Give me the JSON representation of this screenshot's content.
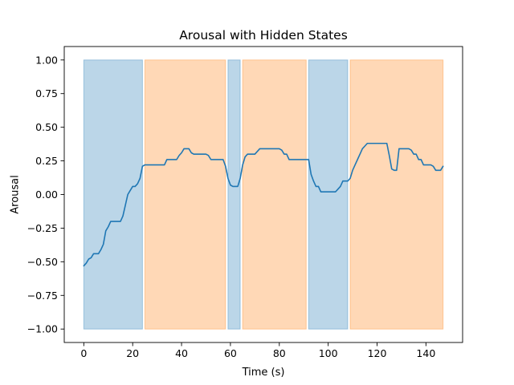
{
  "chart_data": {
    "type": "line",
    "title": "Arousal with Hidden States",
    "xlabel": "Time (s)",
    "ylabel": "Arousal",
    "xlim": [
      -8,
      155
    ],
    "ylim": [
      -1.1,
      1.1
    ],
    "xticks": [
      0,
      20,
      40,
      60,
      80,
      100,
      120,
      140
    ],
    "xtick_labels": [
      "0",
      "20",
      "40",
      "60",
      "80",
      "100",
      "120",
      "140"
    ],
    "yticks": [
      -1.0,
      -0.75,
      -0.5,
      -0.25,
      0.0,
      0.25,
      0.5,
      0.75,
      1.0
    ],
    "ytick_labels": [
      "−1.00",
      "−0.75",
      "−0.50",
      "−0.25",
      "0.00",
      "0.25",
      "0.50",
      "0.75",
      "1.00"
    ],
    "grid": false,
    "legend": "none",
    "state_colors": [
      "#1f77b4",
      "#ff7f0e"
    ],
    "state_opacity": 0.3,
    "line_color": "#1f77b4",
    "state_spans": [
      {
        "state": 0,
        "start": 0,
        "end": 24,
        "ymin": -1.0,
        "ymax": 1.0
      },
      {
        "state": 1,
        "start": 25,
        "end": 58,
        "ymin": -1.0,
        "ymax": 1.0
      },
      {
        "state": 0,
        "start": 59,
        "end": 64,
        "ymin": -1.0,
        "ymax": 1.0
      },
      {
        "state": 1,
        "start": 65,
        "end": 91,
        "ymin": -1.0,
        "ymax": 1.0
      },
      {
        "state": 0,
        "start": 92,
        "end": 108,
        "ymin": -1.0,
        "ymax": 1.0
      },
      {
        "state": 1,
        "start": 109,
        "end": 147,
        "ymin": -1.0,
        "ymax": 1.0
      }
    ],
    "series": [
      {
        "x": [
          0,
          1,
          2,
          3,
          4,
          5,
          6,
          7,
          8,
          9,
          10,
          11,
          12,
          13,
          14,
          15,
          16,
          17,
          18,
          19,
          20,
          21,
          22,
          23,
          24,
          25,
          26,
          27,
          28,
          29,
          30,
          31,
          32,
          33,
          34,
          35,
          36,
          37,
          38,
          39,
          40,
          41,
          42,
          43,
          44,
          45,
          46,
          47,
          48,
          49,
          50,
          51,
          52,
          53,
          54,
          55,
          56,
          57,
          58,
          59,
          60,
          61,
          62,
          63,
          64,
          65,
          66,
          67,
          68,
          69,
          70,
          71,
          72,
          73,
          74,
          75,
          76,
          77,
          78,
          79,
          80,
          81,
          82,
          83,
          84,
          85,
          86,
          87,
          88,
          89,
          90,
          91,
          92,
          93,
          94,
          95,
          96,
          97,
          98,
          99,
          100,
          101,
          102,
          103,
          104,
          105,
          106,
          107,
          108,
          109,
          110,
          111,
          112,
          113,
          114,
          115,
          116,
          117,
          118,
          119,
          120,
          121,
          122,
          123,
          124,
          125,
          126,
          127,
          128,
          129,
          130,
          131,
          132,
          133,
          134,
          135,
          136,
          137,
          138,
          139,
          140,
          141,
          142,
          143,
          144,
          145,
          146,
          147
        ],
        "y": [
          -0.53,
          -0.51,
          -0.48,
          -0.47,
          -0.44,
          -0.44,
          -0.44,
          -0.41,
          -0.37,
          -0.27,
          -0.24,
          -0.2,
          -0.2,
          -0.2,
          -0.2,
          -0.2,
          -0.16,
          -0.08,
          0.0,
          0.03,
          0.06,
          0.06,
          0.08,
          0.12,
          0.21,
          0.22,
          0.22,
          0.22,
          0.22,
          0.22,
          0.22,
          0.22,
          0.22,
          0.22,
          0.26,
          0.26,
          0.26,
          0.26,
          0.26,
          0.29,
          0.31,
          0.34,
          0.34,
          0.34,
          0.31,
          0.3,
          0.3,
          0.3,
          0.3,
          0.3,
          0.3,
          0.29,
          0.26,
          0.26,
          0.26,
          0.26,
          0.26,
          0.26,
          0.21,
          0.12,
          0.07,
          0.06,
          0.06,
          0.06,
          0.12,
          0.22,
          0.28,
          0.3,
          0.3,
          0.3,
          0.3,
          0.32,
          0.34,
          0.34,
          0.34,
          0.34,
          0.34,
          0.34,
          0.34,
          0.34,
          0.34,
          0.33,
          0.3,
          0.3,
          0.26,
          0.26,
          0.26,
          0.26,
          0.26,
          0.26,
          0.26,
          0.26,
          0.26,
          0.15,
          0.1,
          0.06,
          0.06,
          0.02,
          0.02,
          0.02,
          0.02,
          0.02,
          0.02,
          0.02,
          0.04,
          0.06,
          0.1,
          0.1,
          0.1,
          0.12,
          0.18,
          0.22,
          0.26,
          0.3,
          0.34,
          0.36,
          0.38,
          0.38,
          0.38,
          0.38,
          0.38,
          0.38,
          0.38,
          0.38,
          0.38,
          0.29,
          0.19,
          0.18,
          0.18,
          0.34,
          0.34,
          0.34,
          0.34,
          0.34,
          0.33,
          0.3,
          0.3,
          0.26,
          0.26,
          0.22,
          0.22,
          0.22,
          0.22,
          0.21,
          0.18,
          0.18,
          0.18,
          0.21
        ]
      }
    ]
  }
}
